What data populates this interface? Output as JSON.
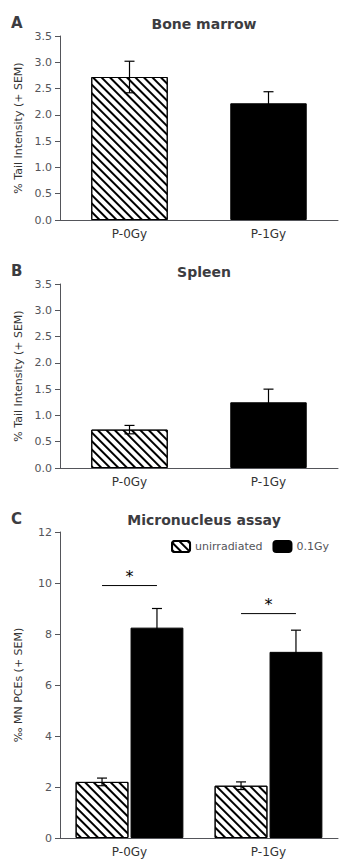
{
  "chart_data": [
    {
      "type": "bar",
      "title": "Bone marrow",
      "label": "A",
      "categories": [
        "P-0Gy",
        "P-1Gy"
      ],
      "values": [
        2.72,
        2.22
      ],
      "errors": [
        0.3,
        0.22
      ],
      "colors": [
        "white",
        "black"
      ],
      "ylabel": "% Tail Intensity (+ SEM)",
      "ylim": [
        0,
        3.5
      ],
      "yticks": [
        {
          "value": 0,
          "label": "0.0"
        },
        0.5,
        {
          "value": 1,
          "label": "1.0"
        },
        1.5,
        {
          "value": 2,
          "label": "2.0"
        },
        2.5,
        {
          "value": 3,
          "label": "3.0"
        },
        3.5
      ],
      "grid": false
    },
    {
      "type": "bar",
      "title": "Spleen",
      "label": "B",
      "categories": [
        "P-0Gy",
        "P-1Gy"
      ],
      "values": [
        0.73,
        1.25
      ],
      "errors": [
        0.08,
        0.25
      ],
      "colors": [
        "white",
        "black"
      ],
      "ylabel": "% Tail Intensity (+ SEM)",
      "ylim": [
        0,
        3.5
      ],
      "yticks": [
        {
          "value": 0,
          "label": "0.0"
        },
        0.5,
        {
          "value": 1,
          "label": "1.0"
        },
        1.5,
        {
          "value": 2,
          "label": "2.0"
        },
        2.5,
        {
          "value": 3,
          "label": "3.0"
        },
        3.5
      ],
      "grid": false
    },
    {
      "type": "bar",
      "title": "Micronucleus assay",
      "label": "C",
      "categories": [
        "P-0Gy",
        "P-1Gy"
      ],
      "series": [
        {
          "name": "unirradiated",
          "color": "white",
          "values": [
            2.2,
            2.05
          ],
          "errors": [
            0.15,
            0.15
          ]
        },
        {
          "name": "0.1Gy",
          "color": "black",
          "values": [
            8.25,
            7.3
          ],
          "errors": [
            0.75,
            0.85
          ]
        }
      ],
      "ylabel": "‰ MN PCEs (+ SEM)",
      "ylim": [
        0,
        12
      ],
      "yticks": [
        0,
        2,
        4,
        6,
        8,
        10,
        12
      ],
      "annotations": [
        {
          "text": "*",
          "x": "P-0Gy",
          "y": 9.9
        },
        {
          "text": "*",
          "x": "P-1Gy",
          "y": 8.8
        }
      ],
      "legend": "upper right",
      "grid": false
    }
  ]
}
